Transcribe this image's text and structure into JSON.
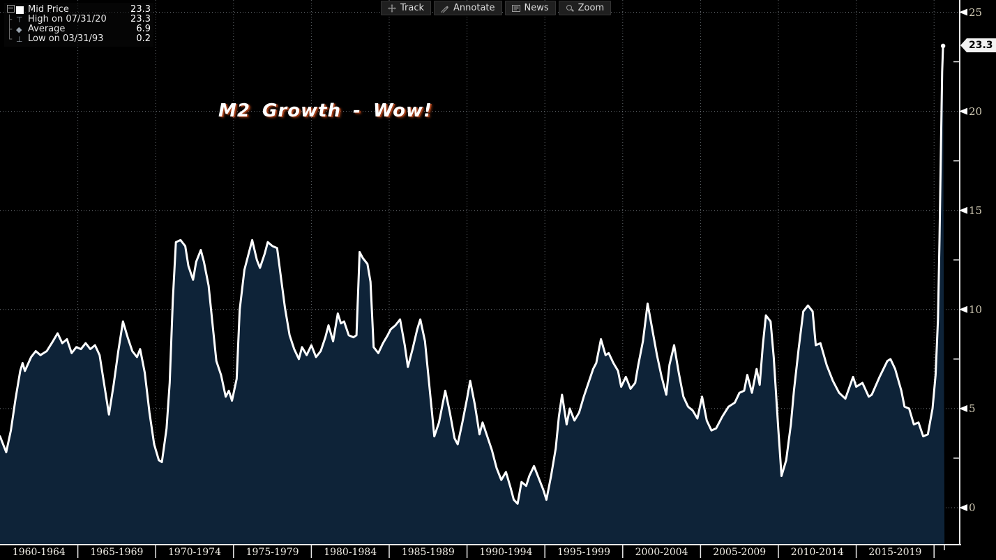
{
  "toolbar": {
    "buttons": [
      {
        "icon": "track-crosshair-icon",
        "label": "Track"
      },
      {
        "icon": "annotate-pencil-icon",
        "label": "Annotate"
      },
      {
        "icon": "news-lines-icon",
        "label": "News"
      },
      {
        "icon": "zoom-magnifier-icon",
        "label": "Zoom"
      }
    ]
  },
  "legend": {
    "rows": [
      {
        "marker": "white-square-swatch",
        "label": "Mid Price",
        "value": "23.3"
      },
      {
        "marker": "high-tick",
        "label": "High on 07/31/20",
        "value": "23.3"
      },
      {
        "marker": "average-diamond",
        "label": "Average",
        "value": "6.9"
      },
      {
        "marker": "low-tick",
        "label": "Low on 03/31/93",
        "value": "0.2"
      }
    ]
  },
  "annotation": {
    "text": "M2 Growth - Wow!"
  },
  "last_price_badge": "23.3",
  "colors": {
    "background": "#000000",
    "area_fill": "#0e2338",
    "line": "#ffffff",
    "grid": "#98a0a8",
    "axis": "#e8e8e8",
    "y_label": "#d3ccb6",
    "x_label": "#efece4",
    "annotation_shadow": "#a03c17"
  },
  "chart_data": {
    "type": "area",
    "title": "M2 Growth - Wow!",
    "series_name": "Mid Price",
    "stats": {
      "last": 23.3,
      "high_date": "07/31/20",
      "high": 23.3,
      "average": 6.9,
      "low_date": "03/31/93",
      "low": 0.2
    },
    "x_axis": {
      "labels": [
        "1960-1964",
        "1965-1969",
        "1970-1974",
        "1975-1979",
        "1980-1984",
        "1985-1989",
        "1990-1994",
        "1995-1999",
        "2000-2004",
        "2005-2009",
        "2010-2014",
        "2015-2019"
      ],
      "range_years": [
        1960,
        2021.6
      ],
      "grid": true
    },
    "y_axis": {
      "ticks": [
        0,
        5,
        10,
        15,
        20,
        25
      ],
      "minor_ticks": [
        2.5,
        7.5,
        12.5,
        17.5,
        22.5
      ],
      "range": [
        0,
        25
      ],
      "grid": true,
      "side": "right"
    },
    "points": [
      [
        1960.0,
        3.6
      ],
      [
        1960.4,
        2.8
      ],
      [
        1960.7,
        3.9
      ],
      [
        1961.0,
        5.5
      ],
      [
        1961.3,
        6.9
      ],
      [
        1961.45,
        7.3
      ],
      [
        1961.6,
        6.9
      ],
      [
        1962.0,
        7.6
      ],
      [
        1962.3,
        7.9
      ],
      [
        1962.6,
        7.7
      ],
      [
        1963.0,
        7.9
      ],
      [
        1963.4,
        8.4
      ],
      [
        1963.7,
        8.8
      ],
      [
        1964.0,
        8.3
      ],
      [
        1964.3,
        8.5
      ],
      [
        1964.6,
        7.8
      ],
      [
        1964.9,
        8.1
      ],
      [
        1965.2,
        8.0
      ],
      [
        1965.5,
        8.3
      ],
      [
        1965.8,
        8.0
      ],
      [
        1966.1,
        8.2
      ],
      [
        1966.4,
        7.7
      ],
      [
        1966.7,
        6.2
      ],
      [
        1967.0,
        4.7
      ],
      [
        1967.3,
        6.2
      ],
      [
        1967.6,
        7.9
      ],
      [
        1967.9,
        9.4
      ],
      [
        1968.2,
        8.6
      ],
      [
        1968.5,
        7.9
      ],
      [
        1968.8,
        7.6
      ],
      [
        1969.0,
        8.0
      ],
      [
        1969.3,
        6.8
      ],
      [
        1969.6,
        4.8
      ],
      [
        1969.9,
        3.2
      ],
      [
        1970.2,
        2.4
      ],
      [
        1970.4,
        2.3
      ],
      [
        1970.7,
        4.0
      ],
      [
        1970.9,
        6.3
      ],
      [
        1971.1,
        10.5
      ],
      [
        1971.3,
        13.4
      ],
      [
        1971.6,
        13.5
      ],
      [
        1971.9,
        13.2
      ],
      [
        1972.1,
        12.2
      ],
      [
        1972.4,
        11.5
      ],
      [
        1972.6,
        12.4
      ],
      [
        1972.9,
        13.0
      ],
      [
        1973.1,
        12.4
      ],
      [
        1973.4,
        11.2
      ],
      [
        1973.7,
        8.9
      ],
      [
        1973.9,
        7.4
      ],
      [
        1974.2,
        6.7
      ],
      [
        1974.5,
        5.6
      ],
      [
        1974.7,
        5.9
      ],
      [
        1974.9,
        5.4
      ],
      [
        1975.2,
        6.5
      ],
      [
        1975.4,
        10.0
      ],
      [
        1975.7,
        12.0
      ],
      [
        1976.0,
        12.9
      ],
      [
        1976.2,
        13.5
      ],
      [
        1976.5,
        12.5
      ],
      [
        1976.7,
        12.1
      ],
      [
        1977.0,
        12.8
      ],
      [
        1977.2,
        13.4
      ],
      [
        1977.5,
        13.2
      ],
      [
        1977.8,
        13.1
      ],
      [
        1978.1,
        11.3
      ],
      [
        1978.3,
        10.1
      ],
      [
        1978.6,
        8.7
      ],
      [
        1978.9,
        8.0
      ],
      [
        1979.2,
        7.5
      ],
      [
        1979.4,
        8.1
      ],
      [
        1979.7,
        7.7
      ],
      [
        1980.0,
        8.2
      ],
      [
        1980.3,
        7.6
      ],
      [
        1980.6,
        7.9
      ],
      [
        1980.9,
        8.6
      ],
      [
        1981.1,
        9.2
      ],
      [
        1981.4,
        8.4
      ],
      [
        1981.7,
        9.8
      ],
      [
        1981.9,
        9.3
      ],
      [
        1982.1,
        9.4
      ],
      [
        1982.4,
        8.7
      ],
      [
        1982.7,
        8.6
      ],
      [
        1982.9,
        8.7
      ],
      [
        1983.1,
        12.9
      ],
      [
        1983.3,
        12.6
      ],
      [
        1983.6,
        12.3
      ],
      [
        1983.8,
        11.4
      ],
      [
        1984.0,
        8.1
      ],
      [
        1984.3,
        7.8
      ],
      [
        1984.6,
        8.3
      ],
      [
        1984.9,
        8.7
      ],
      [
        1985.1,
        9.0
      ],
      [
        1985.4,
        9.2
      ],
      [
        1985.7,
        9.5
      ],
      [
        1986.0,
        8.2
      ],
      [
        1986.2,
        7.1
      ],
      [
        1986.5,
        8.0
      ],
      [
        1986.8,
        9.0
      ],
      [
        1987.0,
        9.5
      ],
      [
        1987.3,
        8.4
      ],
      [
        1987.6,
        6.0
      ],
      [
        1987.9,
        3.6
      ],
      [
        1988.2,
        4.3
      ],
      [
        1988.6,
        5.9
      ],
      [
        1988.9,
        4.8
      ],
      [
        1989.2,
        3.5
      ],
      [
        1989.4,
        3.2
      ],
      [
        1989.7,
        4.3
      ],
      [
        1990.0,
        5.5
      ],
      [
        1990.2,
        6.4
      ],
      [
        1990.5,
        5.2
      ],
      [
        1990.8,
        3.7
      ],
      [
        1991.0,
        4.3
      ],
      [
        1991.3,
        3.6
      ],
      [
        1991.6,
        2.9
      ],
      [
        1991.9,
        2.0
      ],
      [
        1992.2,
        1.4
      ],
      [
        1992.5,
        1.8
      ],
      [
        1992.8,
        1.0
      ],
      [
        1993.0,
        0.4
      ],
      [
        1993.25,
        0.2
      ],
      [
        1993.5,
        1.3
      ],
      [
        1993.8,
        1.1
      ],
      [
        1994.0,
        1.6
      ],
      [
        1994.3,
        2.1
      ],
      [
        1994.6,
        1.5
      ],
      [
        1994.9,
        0.9
      ],
      [
        1995.1,
        0.4
      ],
      [
        1995.4,
        1.6
      ],
      [
        1995.7,
        3.0
      ],
      [
        1995.9,
        4.6
      ],
      [
        1996.1,
        5.7
      ],
      [
        1996.4,
        4.2
      ],
      [
        1996.6,
        5.0
      ],
      [
        1996.9,
        4.4
      ],
      [
        1997.2,
        4.8
      ],
      [
        1997.5,
        5.6
      ],
      [
        1997.8,
        6.3
      ],
      [
        1998.1,
        7.0
      ],
      [
        1998.3,
        7.3
      ],
      [
        1998.6,
        8.5
      ],
      [
        1998.9,
        7.7
      ],
      [
        1999.1,
        7.8
      ],
      [
        1999.4,
        7.3
      ],
      [
        1999.7,
        6.9
      ],
      [
        1999.9,
        6.1
      ],
      [
        2000.2,
        6.6
      ],
      [
        2000.5,
        6.0
      ],
      [
        2000.8,
        6.3
      ],
      [
        2001.0,
        7.2
      ],
      [
        2001.3,
        8.4
      ],
      [
        2001.6,
        10.3
      ],
      [
        2001.9,
        9.0
      ],
      [
        2002.2,
        7.7
      ],
      [
        2002.5,
        6.6
      ],
      [
        2002.8,
        5.7
      ],
      [
        2003.0,
        7.2
      ],
      [
        2003.3,
        8.2
      ],
      [
        2003.6,
        6.8
      ],
      [
        2003.9,
        5.6
      ],
      [
        2004.2,
        5.1
      ],
      [
        2004.5,
        4.9
      ],
      [
        2004.8,
        4.5
      ],
      [
        2005.1,
        5.6
      ],
      [
        2005.4,
        4.4
      ],
      [
        2005.7,
        3.9
      ],
      [
        2006.0,
        4.0
      ],
      [
        2006.4,
        4.6
      ],
      [
        2006.8,
        5.1
      ],
      [
        2007.2,
        5.3
      ],
      [
        2007.5,
        5.8
      ],
      [
        2007.8,
        5.9
      ],
      [
        2008.0,
        6.7
      ],
      [
        2008.3,
        5.8
      ],
      [
        2008.6,
        7.0
      ],
      [
        2008.8,
        6.2
      ],
      [
        2009.0,
        8.2
      ],
      [
        2009.2,
        9.7
      ],
      [
        2009.5,
        9.4
      ],
      [
        2009.7,
        7.6
      ],
      [
        2010.0,
        3.9
      ],
      [
        2010.2,
        1.6
      ],
      [
        2010.5,
        2.4
      ],
      [
        2010.8,
        4.2
      ],
      [
        2011.0,
        5.9
      ],
      [
        2011.3,
        8.0
      ],
      [
        2011.6,
        9.9
      ],
      [
        2011.9,
        10.2
      ],
      [
        2012.2,
        9.9
      ],
      [
        2012.4,
        8.2
      ],
      [
        2012.7,
        8.3
      ],
      [
        2013.1,
        7.2
      ],
      [
        2013.5,
        6.4
      ],
      [
        2013.9,
        5.8
      ],
      [
        2014.3,
        5.5
      ],
      [
        2014.8,
        6.6
      ],
      [
        2015.0,
        6.1
      ],
      [
        2015.4,
        6.3
      ],
      [
        2015.8,
        5.6
      ],
      [
        2016.0,
        5.7
      ],
      [
        2016.5,
        6.6
      ],
      [
        2017.0,
        7.4
      ],
      [
        2017.2,
        7.5
      ],
      [
        2017.5,
        7.0
      ],
      [
        2017.9,
        5.9
      ],
      [
        2018.1,
        5.1
      ],
      [
        2018.4,
        5.0
      ],
      [
        2018.7,
        4.2
      ],
      [
        2019.0,
        4.3
      ],
      [
        2019.3,
        3.6
      ],
      [
        2019.6,
        3.7
      ],
      [
        2019.9,
        5.0
      ],
      [
        2020.1,
        6.7
      ],
      [
        2020.25,
        9.5
      ],
      [
        2020.35,
        13.5
      ],
      [
        2020.45,
        18.5
      ],
      [
        2020.52,
        22.0
      ],
      [
        2020.58,
        23.3
      ]
    ]
  }
}
